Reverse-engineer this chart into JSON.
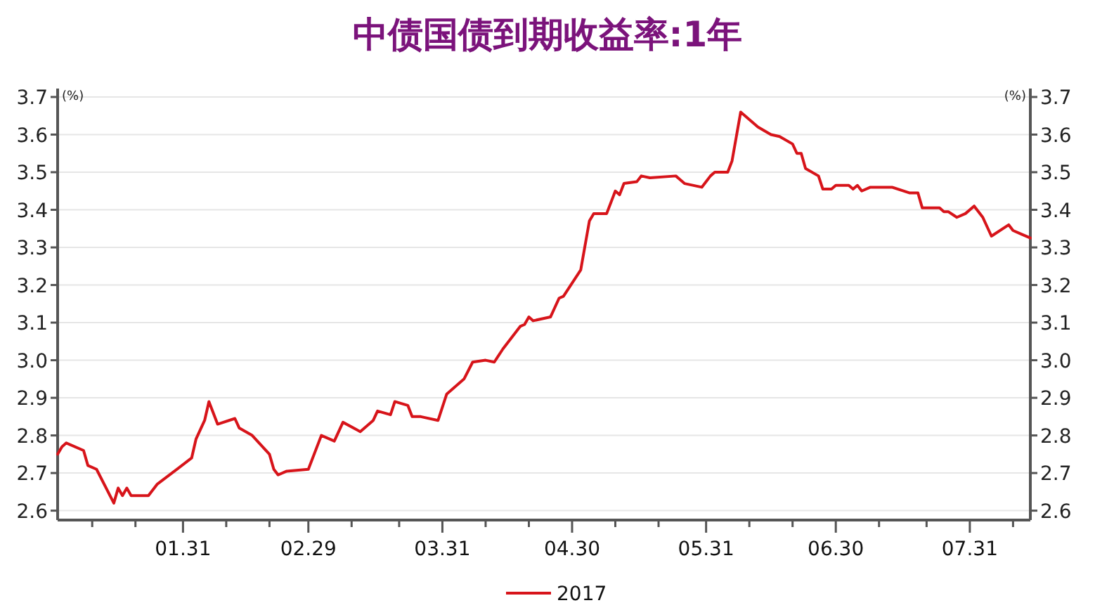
{
  "chart_data": {
    "type": "line",
    "title": "中债国债到期收益率:1年",
    "ylabel": "(%)",
    "y2label": "(%)",
    "xlim": [
      "--01-02",
      "--08-14"
    ],
    "xticks": [
      {
        "value": "--01-10",
        "label": null
      },
      {
        "value": "--01-20",
        "label": null
      },
      {
        "value": "--01-31",
        "label": "01.31"
      },
      {
        "value": "--02-10",
        "label": null
      },
      {
        "value": "--02-20",
        "label": null
      },
      {
        "value": "--02-29",
        "label": "02.29"
      },
      {
        "value": "--03-10",
        "label": null
      },
      {
        "value": "--03-21",
        "label": null
      },
      {
        "value": "--03-31",
        "label": "03.31"
      },
      {
        "value": "--04-10",
        "label": null
      },
      {
        "value": "--04-20",
        "label": null
      },
      {
        "value": "--04-30",
        "label": "04.30"
      },
      {
        "value": "--05-10",
        "label": null
      },
      {
        "value": "--05-20",
        "label": null
      },
      {
        "value": "--05-31",
        "label": "05.31"
      },
      {
        "value": "--06-10",
        "label": null
      },
      {
        "value": "--06-20",
        "label": null
      },
      {
        "value": "--06-30",
        "label": "06.30"
      },
      {
        "value": "--07-10",
        "label": null
      },
      {
        "value": "--07-21",
        "label": null
      },
      {
        "value": "--07-31",
        "label": "07.31"
      },
      {
        "value": "--08-10",
        "label": null
      }
    ],
    "ylim": [
      2.575,
      3.7
    ],
    "yticks": [
      {
        "value": 2.6,
        "label": "2.6"
      },
      {
        "value": 2.7,
        "label": "2.7"
      },
      {
        "value": 2.8,
        "label": "2.8"
      },
      {
        "value": 2.9,
        "label": "2.9"
      },
      {
        "value": 3.0,
        "label": "3.0"
      },
      {
        "value": 3.1,
        "label": "3.1"
      },
      {
        "value": 3.2,
        "label": "3.2"
      },
      {
        "value": 3.3,
        "label": "3.3"
      },
      {
        "value": 3.4,
        "label": "3.4"
      },
      {
        "value": 3.5,
        "label": "3.5"
      },
      {
        "value": 3.6,
        "label": "3.6"
      },
      {
        "value": 3.7,
        "label": "3.7"
      }
    ],
    "y2lim": [
      2.575,
      3.7
    ],
    "y2ticks": [
      {
        "value": 2.6,
        "label": "2.6"
      },
      {
        "value": 2.7,
        "label": "2.7"
      },
      {
        "value": 2.8,
        "label": "2.8"
      },
      {
        "value": 2.9,
        "label": "2.9"
      },
      {
        "value": 3.0,
        "label": "3.0"
      },
      {
        "value": 3.1,
        "label": "3.1"
      },
      {
        "value": 3.2,
        "label": "3.2"
      },
      {
        "value": 3.3,
        "label": "3.3"
      },
      {
        "value": 3.4,
        "label": "3.4"
      },
      {
        "value": 3.5,
        "label": "3.5"
      },
      {
        "value": 3.6,
        "label": "3.6"
      },
      {
        "value": 3.7,
        "label": "3.7"
      }
    ],
    "grid": "y",
    "legend": "bottom",
    "line_style": "solid",
    "series": [
      {
        "name": "2017",
        "color": "#d7141a",
        "x": [
          "--01-02",
          "--01-03",
          "--01-04",
          "--01-08",
          "--01-09",
          "--01-11",
          "--01-15",
          "--01-16",
          "--01-17",
          "--01-18",
          "--01-19",
          "--01-23",
          "--01-25",
          "--02-02",
          "--02-03",
          "--02-05",
          "--02-06",
          "--02-08",
          "--02-12",
          "--02-13",
          "--02-16",
          "--02-20",
          "--02-21",
          "--02-22",
          "--02-24",
          "--02-29",
          "--03-03",
          "--03-06",
          "--03-08",
          "--03-12",
          "--03-15",
          "--03-16",
          "--03-19",
          "--03-20",
          "--03-23",
          "--03-24",
          "--03-26",
          "--03-30",
          "--04-01",
          "--04-05",
          "--04-07",
          "--04-10",
          "--04-12",
          "--04-14",
          "--04-18",
          "--04-19",
          "--04-20",
          "--04-21",
          "--04-25",
          "--04-27",
          "--04-28",
          "--05-02",
          "--05-04",
          "--05-05",
          "--05-08",
          "--05-10",
          "--05-11",
          "--05-12",
          "--05-15",
          "--05-16",
          "--05-18",
          "--05-24",
          "--05-26",
          "--05-30",
          "--06-01",
          "--06-02",
          "--06-05",
          "--06-06",
          "--06-08",
          "--06-12",
          "--06-15",
          "--06-17",
          "--06-20",
          "--06-21",
          "--06-22",
          "--06-23",
          "--06-26",
          "--06-27",
          "--06-29",
          "--06-30",
          "--07-03",
          "--07-04",
          "--07-05",
          "--07-06",
          "--07-08",
          "--07-13",
          "--07-17",
          "--07-19",
          "--07-20",
          "--07-24",
          "--07-25",
          "--07-26",
          "--07-28",
          "--07-30",
          "--08-01",
          "--08-03",
          "--08-05",
          "--08-09",
          "--08-10",
          "--08-12",
          "--08-14"
        ],
        "values": [
          2.75,
          2.77,
          2.78,
          2.76,
          2.72,
          2.71,
          2.62,
          2.66,
          2.64,
          2.66,
          2.64,
          2.64,
          2.67,
          2.74,
          2.79,
          2.84,
          2.89,
          2.83,
          2.845,
          2.82,
          2.8,
          2.75,
          2.71,
          2.695,
          2.705,
          2.71,
          2.8,
          2.785,
          2.835,
          2.81,
          2.84,
          2.865,
          2.855,
          2.89,
          2.88,
          2.85,
          2.85,
          2.84,
          2.91,
          2.95,
          2.995,
          3.0,
          2.995,
          3.03,
          3.09,
          3.095,
          3.115,
          3.105,
          3.115,
          3.165,
          3.17,
          3.24,
          3.37,
          3.39,
          3.39,
          3.45,
          3.44,
          3.47,
          3.475,
          3.49,
          3.485,
          3.49,
          3.47,
          3.46,
          3.49,
          3.5,
          3.5,
          3.53,
          3.66,
          3.62,
          3.6,
          3.595,
          3.575,
          3.55,
          3.55,
          3.51,
          3.49,
          3.455,
          3.455,
          3.465,
          3.465,
          3.455,
          3.465,
          3.45,
          3.46,
          3.46,
          3.445,
          3.445,
          3.405,
          3.405,
          3.395,
          3.395,
          3.38,
          3.39,
          3.41,
          3.38,
          3.33,
          3.36,
          3.345,
          3.335,
          3.325
        ]
      }
    ]
  }
}
